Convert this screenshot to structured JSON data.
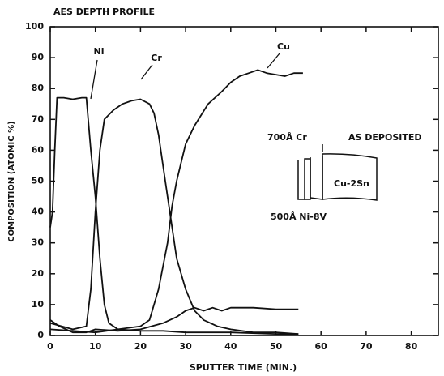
{
  "chart_data": {
    "type": "line",
    "title": "AES DEPTH PROFILE",
    "xlabel": "SPUTTER TIME (MIN.)",
    "ylabel": "COMPOSITION (ATOMIC %)",
    "xlim": [
      0,
      86
    ],
    "ylim": [
      0,
      100
    ],
    "xticks": [
      0,
      10,
      20,
      30,
      40,
      50,
      60,
      70,
      80
    ],
    "yticks": [
      0,
      10,
      20,
      30,
      40,
      50,
      60,
      70,
      80,
      90,
      100
    ],
    "series": [
      {
        "name": "Ni",
        "color": "#111111",
        "x": [
          0,
          0.5,
          1,
          1.5,
          3,
          5,
          7,
          8,
          9,
          10,
          11,
          12,
          13,
          15,
          20,
          25,
          30,
          40,
          50,
          55
        ],
        "values": [
          35,
          40,
          60,
          77,
          77,
          76.5,
          77,
          77,
          60,
          45,
          25,
          10,
          4,
          2,
          1.5,
          1.5,
          1,
          1,
          0.5,
          0.5
        ]
      },
      {
        "name": "Cr",
        "color": "#111111",
        "x": [
          0,
          5,
          8,
          9,
          10,
          11,
          12,
          14,
          16,
          18,
          20,
          22,
          23,
          24,
          25,
          26,
          27,
          28,
          30,
          32,
          34,
          37,
          40,
          45,
          50,
          55
        ],
        "values": [
          4,
          2,
          3,
          15,
          40,
          60,
          70,
          73,
          75,
          76,
          76.5,
          75,
          72,
          65,
          55,
          45,
          35,
          25,
          15,
          8,
          5,
          3,
          2,
          1,
          1,
          0.5
        ]
      },
      {
        "name": "Cu",
        "color": "#111111",
        "x": [
          0,
          5,
          10,
          15,
          20,
          22,
          24,
          26,
          27,
          28,
          30,
          32,
          35,
          38,
          40,
          42,
          44,
          46,
          48,
          50,
          52,
          54,
          56
        ],
        "values": [
          2,
          1.5,
          1,
          2,
          3,
          5,
          15,
          30,
          42,
          50,
          62,
          68,
          75,
          79,
          82,
          84,
          85,
          86,
          85,
          84.5,
          84,
          85,
          85
        ]
      },
      {
        "color": "#111111",
        "x": [
          0,
          2,
          5,
          8,
          10,
          15,
          20,
          25,
          28,
          30,
          32,
          34,
          36,
          38,
          40,
          45,
          50,
          55
        ],
        "values": [
          5,
          3,
          1,
          1,
          2,
          1.5,
          2,
          4,
          6,
          8,
          9,
          8,
          9,
          8,
          9,
          9,
          8.5,
          8.5
        ]
      }
    ],
    "annotations": [
      "700Å Cr",
      "AS DEPOSITED",
      "Cu-2Sn",
      "500Å Ni-8V"
    ]
  }
}
